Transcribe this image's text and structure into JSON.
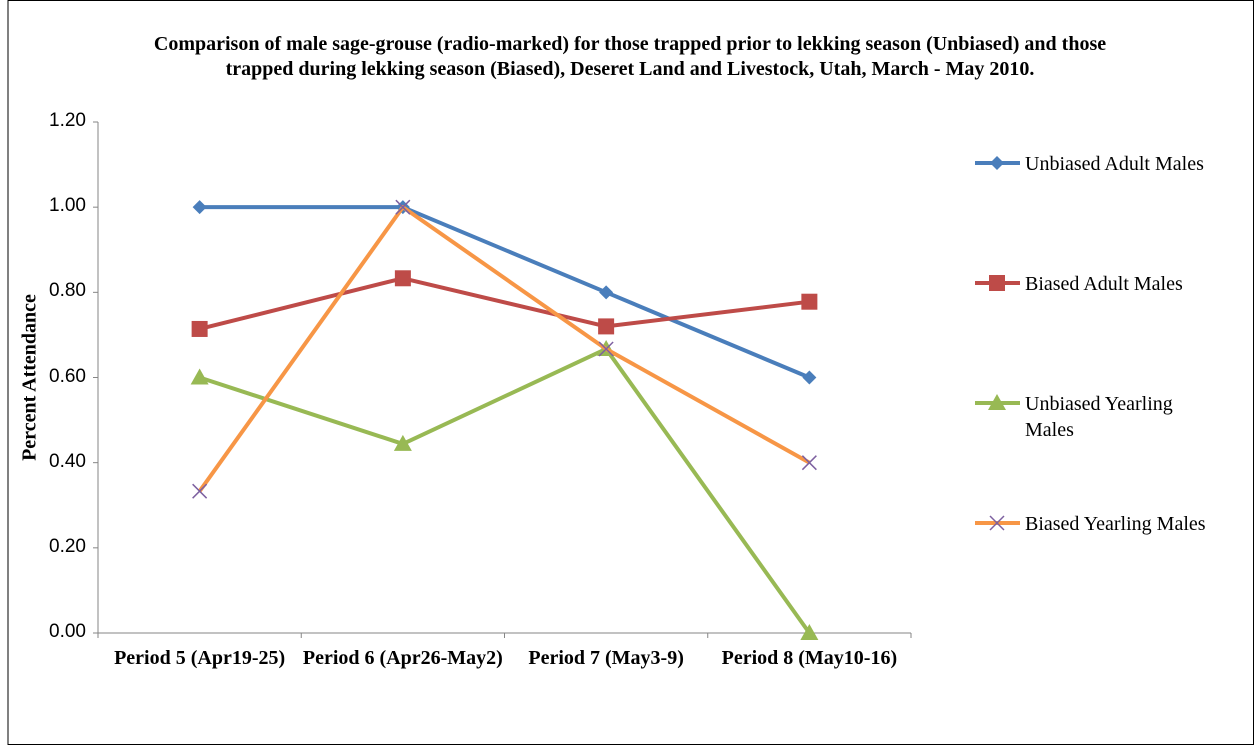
{
  "chart_data": {
    "type": "line",
    "title": "Comparison of male sage-grouse (radio-marked) for those trapped prior to lekking season (Unbiased) and those trapped during lekking season (Biased), Deseret Land and Livestock, Utah, March - May 2010.",
    "y_label": "Percent Attendance",
    "categories": [
      "Period 5 (Apr19-25)",
      "Period 6 (Apr26-May2)",
      "Period 7 (May3-9)",
      "Period 8 (May10-16)"
    ],
    "series": [
      {
        "name": "Unbiased Adult Males",
        "color": "#4a7ebb",
        "marker": "diamond",
        "marker_color": "#4a7ebb",
        "values": [
          1.0,
          1.0,
          0.8,
          0.6
        ]
      },
      {
        "name": "Biased Adult Males",
        "color": "#be4b48",
        "marker": "square",
        "marker_color": "#be4b48",
        "values": [
          0.714,
          0.833,
          0.72,
          0.778
        ]
      },
      {
        "name": "Unbiased Yearling Males",
        "color": "#98b954",
        "marker": "triangle",
        "marker_color": "#98b954",
        "values": [
          0.6,
          0.444,
          0.667,
          0.0
        ]
      },
      {
        "name": "Biased Yearling Males",
        "color": "#f79646",
        "marker": "x",
        "marker_color": "#7d60a0",
        "values": [
          0.333,
          1.0,
          0.667,
          0.4
        ]
      }
    ],
    "ylim": [
      0,
      1.2
    ],
    "yticks": [
      {
        "value": 0,
        "label": "0.00"
      },
      {
        "value": 0.2,
        "label": "0.20"
      },
      {
        "value": 0.4,
        "label": "0.40"
      },
      {
        "value": 0.6,
        "label": "0.60"
      },
      {
        "value": 0.8,
        "label": "0.80"
      },
      {
        "value": 1.0,
        "label": "1.00"
      },
      {
        "value": 1.2,
        "label": "1.20"
      }
    ],
    "legend": "right"
  }
}
